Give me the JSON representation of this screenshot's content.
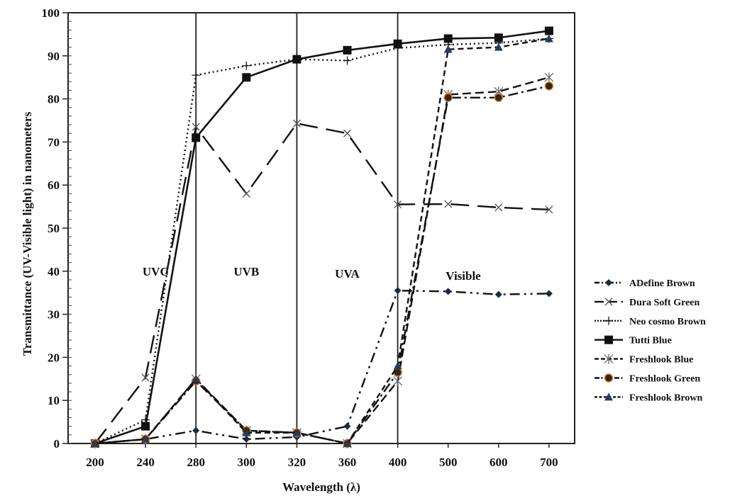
{
  "chart_data": {
    "type": "line",
    "title": "",
    "xlabel": "Wavelength (λ)",
    "ylabel": "Transmittance (UV-Visible light) in nanometers",
    "categories": [
      "200",
      "240",
      "280",
      "300",
      "320",
      "360",
      "400",
      "500",
      "600",
      "700"
    ],
    "ylim": [
      0,
      100
    ],
    "yticks": [
      "0",
      "10",
      "20",
      "30",
      "40",
      "50",
      "60",
      "70",
      "80",
      "90",
      "100"
    ],
    "grid": false,
    "legend_position": "right",
    "region_dividers": [
      "280",
      "320",
      "400"
    ],
    "regions": [
      {
        "label": "UVC",
        "at": 1.2,
        "y": 40
      },
      {
        "label": "UVB",
        "at": 3.0,
        "y": 40
      },
      {
        "label": "UVA",
        "at": 5.0,
        "y": 39.5
      },
      {
        "label": "Visible",
        "at": 7.3,
        "y": 39
      }
    ],
    "series": [
      {
        "name": "ADefine Brown",
        "marker": "diamond",
        "dash": "14 6 3 6 3 6",
        "values": [
          0,
          1,
          3,
          1,
          1.5,
          4,
          35.5,
          35.3,
          34.6,
          34.8
        ]
      },
      {
        "name": "Dura Soft Green",
        "marker": "x",
        "dash": "26 12",
        "values": [
          0,
          15.3,
          73.5,
          58,
          74.3,
          72,
          55.5,
          55.6,
          54.8,
          54.3
        ]
      },
      {
        "name": "Neo cosmo Brown",
        "marker": "plus",
        "dash": "2 4",
        "values": [
          0,
          5.5,
          85.5,
          87.7,
          89.2,
          88.9,
          91.8,
          92.6,
          93,
          94
        ]
      },
      {
        "name": "Tutti Blue",
        "marker": "square",
        "dash": "",
        "values": [
          0,
          4,
          71,
          85,
          89.2,
          91.3,
          92.8,
          94,
          94.2,
          95.8
        ]
      },
      {
        "name": "Freshlook Blue",
        "marker": "asterisk",
        "dash": "12 6",
        "values": [
          0,
          1,
          15,
          3,
          2.5,
          0,
          14.5,
          81,
          81.7,
          85
        ]
      },
      {
        "name": "Freshlook Green",
        "marker": "circle",
        "dash": "14 5 3 5",
        "values": [
          0,
          1,
          14.5,
          3,
          2.5,
          0,
          16.5,
          80.3,
          80.3,
          83
        ]
      },
      {
        "name": "Freshlook Brown",
        "marker": "triangle",
        "dash": "8 5",
        "values": [
          0,
          1,
          15,
          2.5,
          2.5,
          0,
          18,
          91.5,
          92,
          94
        ]
      }
    ]
  }
}
